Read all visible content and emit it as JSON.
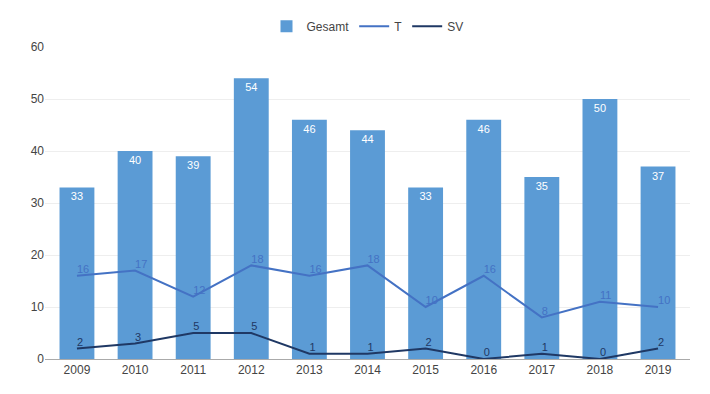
{
  "chart_data": {
    "type": "bar",
    "categories": [
      2009,
      2010,
      2011,
      2012,
      2013,
      2014,
      2015,
      2016,
      2017,
      2018,
      2019
    ],
    "series": [
      {
        "name": "Gesamt",
        "type": "bar",
        "color": "#5B9BD5",
        "values": [
          33,
          40,
          39,
          54,
          46,
          44,
          33,
          46,
          35,
          50,
          37
        ]
      },
      {
        "name": "T",
        "type": "line",
        "color": "#4472C4",
        "values": [
          16,
          17,
          12,
          18,
          16,
          18,
          10,
          16,
          8,
          11,
          10
        ]
      },
      {
        "name": "SV",
        "type": "line",
        "color": "#1F3864",
        "values": [
          2,
          3,
          5,
          5,
          1,
          1,
          2,
          0,
          1,
          0,
          2
        ]
      }
    ],
    "ylim": [
      0,
      60
    ],
    "yticks": [
      0,
      10,
      20,
      30,
      40,
      50,
      60
    ],
    "grid": true,
    "legend": "upper center",
    "data_labels": true
  }
}
